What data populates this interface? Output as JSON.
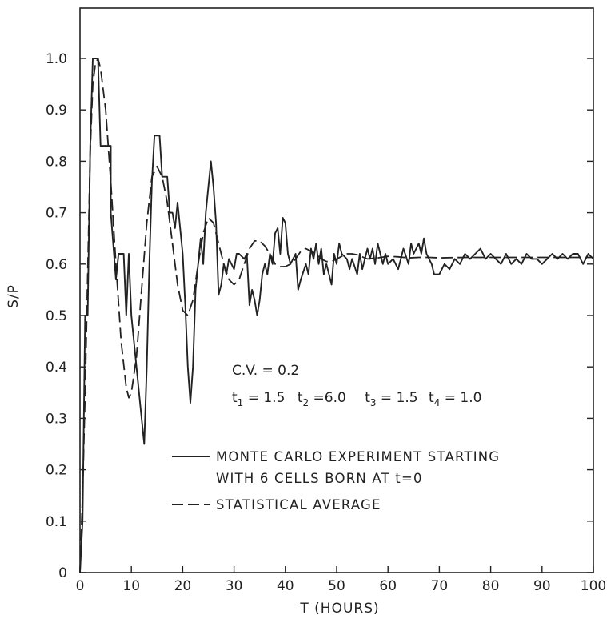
{
  "chart_data": {
    "type": "line",
    "xlabel": "T (HOURS)",
    "ylabel": "S/P",
    "xlim": [
      0,
      100
    ],
    "ylim": [
      0,
      1.0
    ],
    "x_ticks": [
      "0",
      "10",
      "20",
      "30",
      "40",
      "50",
      "60",
      "70",
      "80",
      "90",
      "100"
    ],
    "y_ticks": [
      "0",
      "0.1",
      "0.2",
      "0.3",
      "0.4",
      "0.5",
      "0.6",
      "0.7",
      "0.8",
      "0.9",
      "1.0"
    ],
    "grid": false,
    "legend_placement": "center",
    "annotations": {
      "cv": "C.V. = 0.2",
      "t1_label": "t",
      "t1_sub": "1",
      "t1_value": " = 1.5",
      "t2_label": "t",
      "t2_sub": "2",
      "t2_value": " =6.0",
      "t3_label": "t",
      "t3_sub": "3",
      "t3_value": " = 1.5",
      "t4_label": "t",
      "t4_sub": "4",
      "t4_value": " = 1.0"
    },
    "series": [
      {
        "name": "MONTE CARLO EXPERIMENT STARTING WITH 6 CELLS BORN AT t=0",
        "name_line1": "MONTE CARLO EXPERIMENT STARTING",
        "name_line2": "WITH 6 CELLS BORN AT t=0",
        "style": "solid",
        "points": [
          [
            0,
            0
          ],
          [
            0.5,
            0.1
          ],
          [
            1,
            0.5
          ],
          [
            1.5,
            0.5
          ],
          [
            2,
            0.83
          ],
          [
            2.5,
            1.0
          ],
          [
            3,
            1.0
          ],
          [
            3.5,
            1.0
          ],
          [
            4,
            0.83
          ],
          [
            5,
            0.83
          ],
          [
            6,
            0.83
          ],
          [
            6,
            0.7
          ],
          [
            7,
            0.57
          ],
          [
            7.5,
            0.62
          ],
          [
            8.5,
            0.62
          ],
          [
            9,
            0.5
          ],
          [
            9.5,
            0.62
          ],
          [
            10,
            0.5
          ],
          [
            11,
            0.4
          ],
          [
            12,
            0.3
          ],
          [
            12.5,
            0.25
          ],
          [
            13,
            0.4
          ],
          [
            13.5,
            0.6
          ],
          [
            14,
            0.76
          ],
          [
            14.5,
            0.85
          ],
          [
            15,
            0.85
          ],
          [
            15.5,
            0.85
          ],
          [
            16,
            0.77
          ],
          [
            17,
            0.77
          ],
          [
            17.5,
            0.7
          ],
          [
            18,
            0.7
          ],
          [
            18.5,
            0.67
          ],
          [
            19,
            0.72
          ],
          [
            20,
            0.62
          ],
          [
            20.5,
            0.52
          ],
          [
            21,
            0.4
          ],
          [
            21.5,
            0.33
          ],
          [
            22,
            0.4
          ],
          [
            22.5,
            0.55
          ],
          [
            23,
            0.6
          ],
          [
            23.5,
            0.65
          ],
          [
            24,
            0.6
          ],
          [
            24.5,
            0.7
          ],
          [
            25,
            0.75
          ],
          [
            25.5,
            0.8
          ],
          [
            26,
            0.75
          ],
          [
            26.5,
            0.68
          ],
          [
            27,
            0.54
          ],
          [
            27.5,
            0.56
          ],
          [
            28,
            0.6
          ],
          [
            28.5,
            0.58
          ],
          [
            29,
            0.61
          ],
          [
            30,
            0.59
          ],
          [
            30.5,
            0.62
          ],
          [
            31,
            0.62
          ],
          [
            32,
            0.61
          ],
          [
            32.5,
            0.62
          ],
          [
            33,
            0.52
          ],
          [
            33.5,
            0.55
          ],
          [
            34,
            0.53
          ],
          [
            34.5,
            0.5
          ],
          [
            35,
            0.53
          ],
          [
            35.5,
            0.58
          ],
          [
            36,
            0.6
          ],
          [
            36.5,
            0.58
          ],
          [
            37,
            0.62
          ],
          [
            37.5,
            0.6
          ],
          [
            38,
            0.66
          ],
          [
            38.5,
            0.67
          ],
          [
            39,
            0.62
          ],
          [
            39.5,
            0.69
          ],
          [
            40,
            0.68
          ],
          [
            40.5,
            0.62
          ],
          [
            41,
            0.6
          ],
          [
            42,
            0.62
          ],
          [
            42.5,
            0.55
          ],
          [
            43,
            0.57
          ],
          [
            44,
            0.6
          ],
          [
            44.5,
            0.58
          ],
          [
            45,
            0.63
          ],
          [
            45.5,
            0.61
          ],
          [
            46,
            0.64
          ],
          [
            46.5,
            0.6
          ],
          [
            47,
            0.63
          ],
          [
            47.5,
            0.58
          ],
          [
            48,
            0.6
          ],
          [
            49,
            0.56
          ],
          [
            49.5,
            0.62
          ],
          [
            50,
            0.6
          ],
          [
            50.5,
            0.64
          ],
          [
            51,
            0.62
          ],
          [
            52,
            0.61
          ],
          [
            52.5,
            0.59
          ],
          [
            53,
            0.61
          ],
          [
            54,
            0.58
          ],
          [
            54.5,
            0.62
          ],
          [
            55,
            0.59
          ],
          [
            56,
            0.63
          ],
          [
            56.5,
            0.61
          ],
          [
            57,
            0.63
          ],
          [
            57.5,
            0.6
          ],
          [
            58,
            0.64
          ],
          [
            58.5,
            0.62
          ],
          [
            59,
            0.6
          ],
          [
            59.5,
            0.62
          ],
          [
            60,
            0.6
          ],
          [
            61,
            0.61
          ],
          [
            62,
            0.59
          ],
          [
            63,
            0.63
          ],
          [
            64,
            0.6
          ],
          [
            64.5,
            0.64
          ],
          [
            65,
            0.62
          ],
          [
            66,
            0.64
          ],
          [
            66.5,
            0.62
          ],
          [
            67,
            0.65
          ],
          [
            67.5,
            0.62
          ],
          [
            68,
            0.61
          ],
          [
            68.5,
            0.6
          ],
          [
            69,
            0.58
          ],
          [
            70,
            0.58
          ],
          [
            71,
            0.6
          ],
          [
            72,
            0.59
          ],
          [
            73,
            0.61
          ],
          [
            74,
            0.6
          ],
          [
            75,
            0.62
          ],
          [
            76,
            0.61
          ],
          [
            77,
            0.62
          ],
          [
            78,
            0.63
          ],
          [
            79,
            0.61
          ],
          [
            80,
            0.62
          ],
          [
            81,
            0.61
          ],
          [
            82,
            0.6
          ],
          [
            83,
            0.62
          ],
          [
            84,
            0.6
          ],
          [
            85,
            0.61
          ],
          [
            86,
            0.6
          ],
          [
            87,
            0.62
          ],
          [
            88,
            0.61
          ],
          [
            89,
            0.61
          ],
          [
            90,
            0.6
          ],
          [
            91,
            0.61
          ],
          [
            92,
            0.62
          ],
          [
            93,
            0.61
          ],
          [
            94,
            0.62
          ],
          [
            95,
            0.61
          ],
          [
            96,
            0.62
          ],
          [
            97,
            0.62
          ],
          [
            98,
            0.6
          ],
          [
            99,
            0.62
          ],
          [
            100,
            0.61
          ]
        ]
      },
      {
        "name": "STATISTICAL AVERAGE",
        "style": "dashed",
        "points": [
          [
            0,
            0
          ],
          [
            0.5,
            0.15
          ],
          [
            1,
            0.35
          ],
          [
            1.5,
            0.58
          ],
          [
            2,
            0.82
          ],
          [
            2.5,
            0.95
          ],
          [
            3,
            0.99
          ],
          [
            3.5,
            1.0
          ],
          [
            4,
            0.98
          ],
          [
            5,
            0.9
          ],
          [
            6,
            0.76
          ],
          [
            7,
            0.6
          ],
          [
            8,
            0.45
          ],
          [
            9,
            0.36
          ],
          [
            9.5,
            0.34
          ],
          [
            10,
            0.35
          ],
          [
            11,
            0.42
          ],
          [
            12,
            0.55
          ],
          [
            13,
            0.68
          ],
          [
            14,
            0.77
          ],
          [
            15,
            0.79
          ],
          [
            16,
            0.77
          ],
          [
            17,
            0.72
          ],
          [
            18,
            0.64
          ],
          [
            19,
            0.56
          ],
          [
            20,
            0.51
          ],
          [
            21,
            0.5
          ],
          [
            22,
            0.53
          ],
          [
            23,
            0.6
          ],
          [
            24,
            0.66
          ],
          [
            25,
            0.69
          ],
          [
            26,
            0.68
          ],
          [
            27,
            0.64
          ],
          [
            28,
            0.6
          ],
          [
            29,
            0.57
          ],
          [
            30,
            0.56
          ],
          [
            31,
            0.57
          ],
          [
            32,
            0.6
          ],
          [
            33,
            0.63
          ],
          [
            34,
            0.645
          ],
          [
            35,
            0.645
          ],
          [
            36,
            0.635
          ],
          [
            37,
            0.62
          ],
          [
            38,
            0.6
          ],
          [
            39,
            0.595
          ],
          [
            40,
            0.595
          ],
          [
            41,
            0.6
          ],
          [
            42,
            0.61
          ],
          [
            43,
            0.625
          ],
          [
            44,
            0.63
          ],
          [
            45,
            0.625
          ],
          [
            46,
            0.62
          ],
          [
            47,
            0.61
          ],
          [
            48,
            0.605
          ],
          [
            49,
            0.605
          ],
          [
            50,
            0.61
          ],
          [
            51,
            0.615
          ],
          [
            52,
            0.62
          ],
          [
            53,
            0.62
          ],
          [
            54,
            0.618
          ],
          [
            55,
            0.614
          ],
          [
            56,
            0.61
          ],
          [
            58,
            0.612
          ],
          [
            60,
            0.615
          ],
          [
            62,
            0.614
          ],
          [
            64,
            0.612
          ],
          [
            66,
            0.613
          ],
          [
            68,
            0.613
          ],
          [
            70,
            0.612
          ],
          [
            75,
            0.613
          ],
          [
            80,
            0.613
          ],
          [
            85,
            0.613
          ],
          [
            90,
            0.613
          ],
          [
            95,
            0.613
          ],
          [
            100,
            0.613
          ]
        ]
      }
    ]
  }
}
